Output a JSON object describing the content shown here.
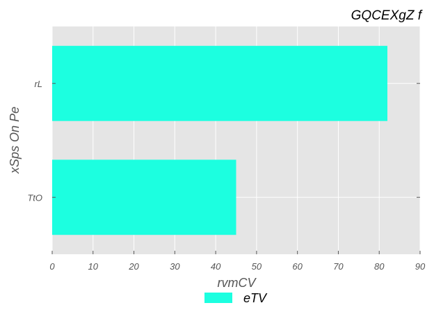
{
  "chart_data": {
    "type": "bar",
    "orientation": "horizontal",
    "title": "GQCEXgZ  f",
    "xlabel": "rvmCV",
    "ylabel": "xSps On Pe",
    "categories": [
      "rL",
      "TtO"
    ],
    "series": [
      {
        "name": "eTV",
        "values": [
          82,
          45
        ],
        "color": "#1cffe0"
      }
    ],
    "xlim": [
      0,
      90
    ],
    "xticks": [
      "0",
      "10",
      "20",
      "30",
      "40",
      "50",
      "60",
      "70",
      "80",
      "90"
    ],
    "grid": true,
    "legend": "bottom-center",
    "background": "#e5e5e5"
  }
}
